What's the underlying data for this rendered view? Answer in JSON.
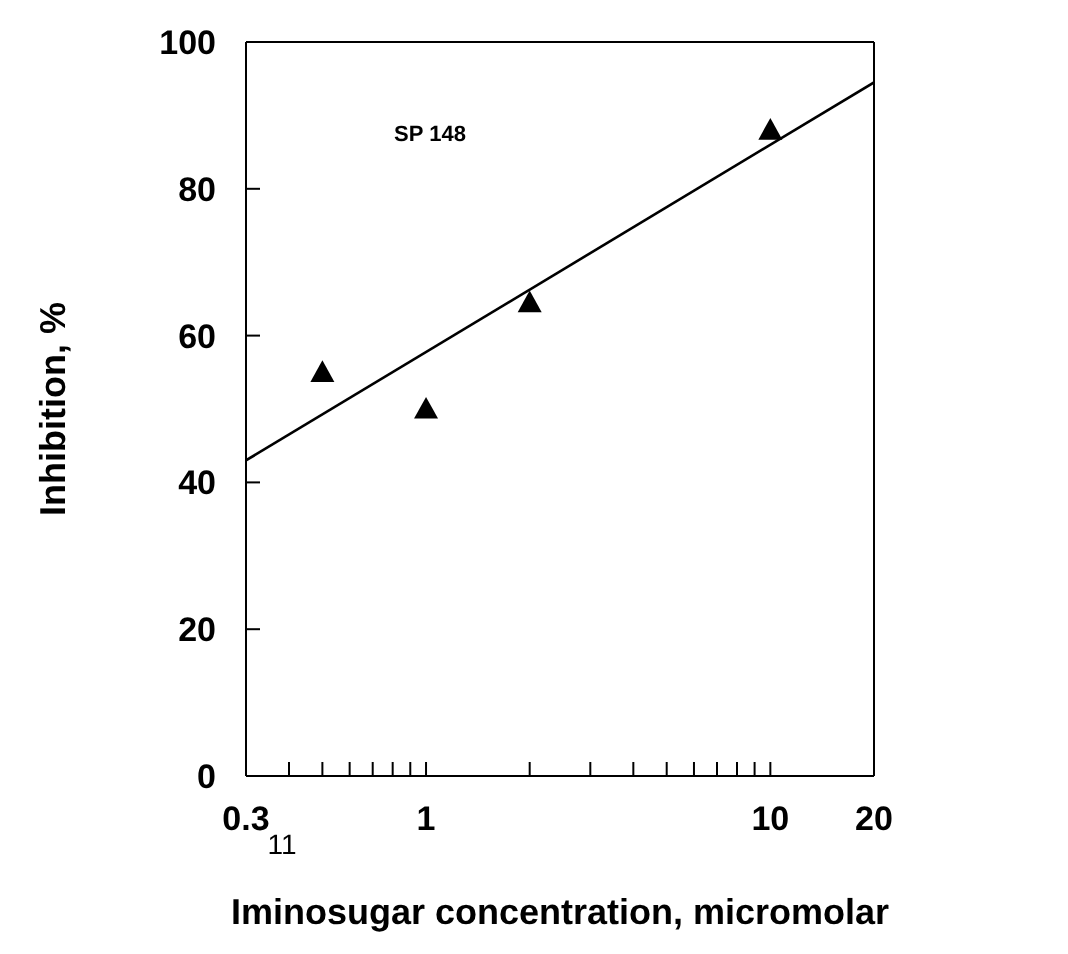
{
  "chart_data": {
    "type": "scatter",
    "xlabel": "Iminosugar concentration, micromolar",
    "ylabel": "Inhibition, %",
    "log": "x",
    "xlim": [
      0.3,
      20
    ],
    "xticks": [
      0.3,
      {
        "value": 0.4,
        "label": null
      },
      {
        "value": 0.5,
        "label": null
      },
      {
        "value": 0.6,
        "label": null
      },
      {
        "value": 0.7,
        "label": null
      },
      {
        "value": 0.8,
        "label": null
      },
      {
        "value": 0.9,
        "label": null
      },
      1,
      {
        "value": 2,
        "label": null
      },
      {
        "value": 3,
        "label": null
      },
      {
        "value": 4,
        "label": null
      },
      {
        "value": 5,
        "label": null
      },
      {
        "value": 6,
        "label": null
      },
      {
        "value": 7,
        "label": null
      },
      {
        "value": 8,
        "label": null
      },
      {
        "value": 9,
        "label": null
      },
      10,
      20
    ],
    "ylim": [
      0,
      100
    ],
    "yticks": [
      0,
      20,
      40,
      60,
      80,
      100
    ],
    "marker": "triangle",
    "series": [
      {
        "color": "#000000",
        "x": [
          0.5,
          1,
          2,
          10
        ],
        "values": [
          55,
          50,
          64.5,
          88
        ]
      },
      {
        "type": "line",
        "color": "#000000",
        "marker": "none",
        "x": [
          0.3,
          20
        ],
        "values": [
          43,
          94.5
        ]
      }
    ],
    "annotations": [
      "SP 148",
      "11"
    ]
  }
}
